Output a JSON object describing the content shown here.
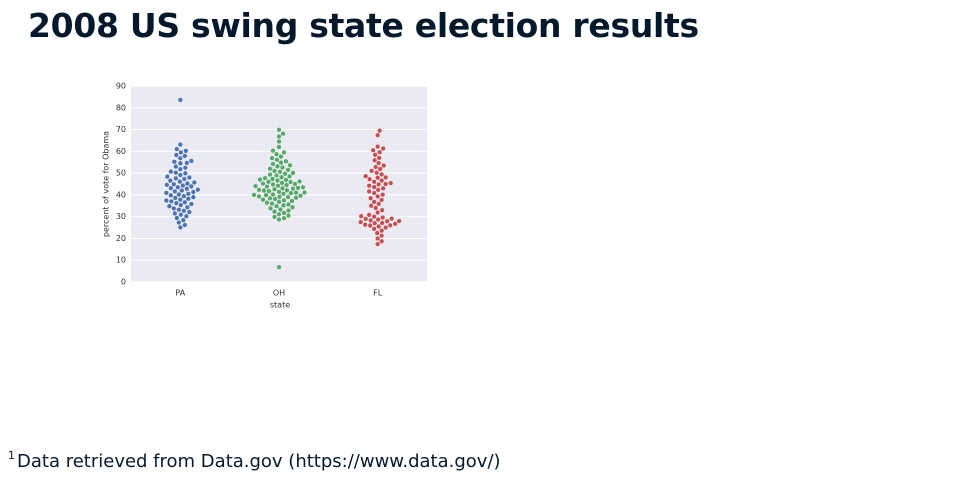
{
  "title": "2008 US swing state election results",
  "footnote": {
    "marker": "1",
    "text": "Data retrieved from Data.gov (https://www.data.gov/)"
  },
  "chart_data": {
    "type": "swarm",
    "x_label": "state",
    "y_label": "percent of vote for Obama",
    "categories": [
      "PA",
      "OH",
      "FL"
    ],
    "colors": [
      "#4c72b0",
      "#55a868",
      "#c44e52"
    ],
    "ylim": [
      0,
      90
    ],
    "yticks": [
      0,
      10,
      20,
      30,
      40,
      50,
      60,
      70,
      80,
      90
    ],
    "grid": true,
    "values": [
      [
        83.6,
        63.1,
        61.0,
        60.2,
        59.5,
        58.3,
        57.9,
        56.8,
        55.6,
        55.2,
        54.7,
        54.5,
        53.0,
        51.8,
        50.7,
        49.9,
        49.1,
        48.4,
        48.0,
        47.6,
        47.3,
        46.5,
        46.1,
        45.7,
        45.2,
        44.9,
        44.6,
        44.3,
        43.9,
        43.5,
        43.1,
        42.8,
        42.4,
        42.0,
        41.6,
        41.3,
        40.9,
        40.5,
        40.2,
        39.8,
        39.4,
        39.0,
        38.6,
        38.2,
        37.8,
        37.4,
        37.0,
        36.6,
        36.2,
        35.8,
        35.3,
        34.8,
        34.3,
        33.8,
        33.2,
        32.7,
        32.1,
        31.5,
        30.9,
        30.2,
        29.4,
        28.4,
        27.3,
        26.2,
        25.1,
        52.5,
        50.2
      ],
      [
        69.9,
        68.1,
        66.8,
        64.5,
        62.0,
        60.3,
        59.5,
        58.7,
        57.6,
        56.9,
        56.1,
        55.4,
        54.8,
        54.2,
        53.6,
        53.1,
        52.6,
        52.0,
        51.5,
        51.0,
        50.6,
        50.1,
        49.7,
        49.3,
        48.9,
        48.5,
        48.1,
        47.7,
        47.3,
        46.9,
        46.6,
        46.2,
        45.9,
        45.5,
        45.2,
        44.8,
        44.5,
        44.2,
        43.8,
        43.5,
        43.2,
        42.9,
        42.6,
        42.3,
        42.0,
        41.7,
        41.4,
        41.1,
        40.8,
        40.5,
        40.2,
        39.9,
        39.6,
        39.3,
        39.0,
        38.7,
        38.4,
        38.1,
        37.8,
        37.5,
        37.2,
        36.8,
        36.4,
        36.0,
        35.6,
        35.2,
        34.8,
        34.3,
        33.8,
        33.3,
        32.8,
        32.3,
        31.7,
        31.1,
        30.5,
        29.9,
        29.3,
        28.7,
        6.8,
        44.0,
        45.0,
        46.0,
        47.0,
        43.0,
        42.1,
        41.0,
        40.0,
        39.1
      ],
      [
        69.5,
        67.4,
        62.2,
        61.3,
        60.5,
        59.6,
        58.4,
        57.0,
        55.9,
        54.6,
        53.5,
        52.8,
        51.9,
        51.0,
        50.2,
        49.4,
        48.6,
        47.9,
        47.2,
        46.6,
        46.0,
        45.4,
        44.8,
        44.2,
        43.6,
        43.0,
        42.3,
        41.6,
        40.9,
        40.1,
        39.3,
        38.5,
        37.7,
        36.8,
        35.9,
        35.0,
        34.0,
        33.0,
        31.9,
        30.8,
        30.2,
        29.6,
        29.1,
        28.7,
        28.3,
        27.9,
        27.5,
        27.1,
        26.7,
        26.3,
        25.9,
        25.5,
        25.0,
        24.4,
        23.6,
        22.5,
        21.3,
        20.0,
        18.7,
        17.4,
        28.0,
        29.0,
        26.0,
        27.0,
        30.0,
        45.0,
        48.0
      ]
    ]
  }
}
